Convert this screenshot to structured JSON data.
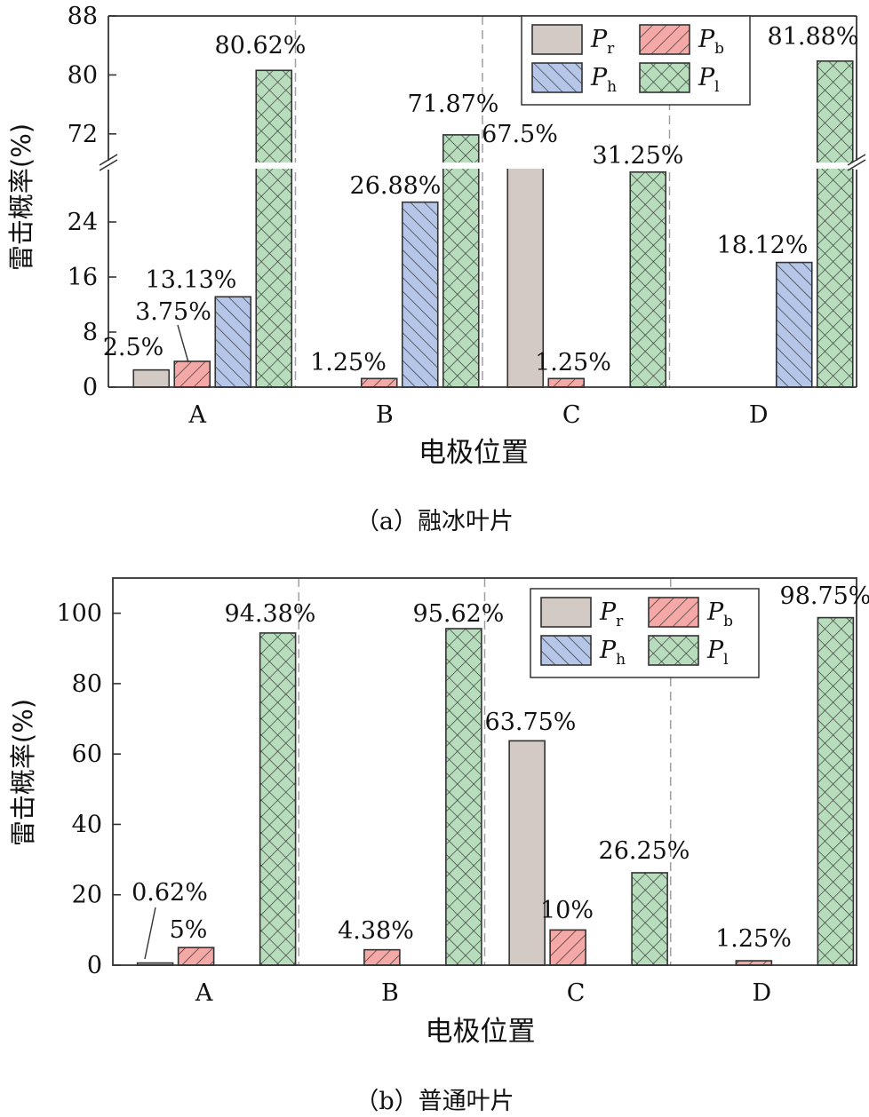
{
  "categories": [
    "A",
    "B",
    "C",
    "D"
  ],
  "colors": {
    "Pr": "#d3c9c5",
    "Pb": "#f4a9a6",
    "Ph": "#b5c6e8",
    "Pl": "#b7ddbd",
    "axis": "#333333",
    "divider": "#a0a0a0"
  },
  "chart_data": [
    {
      "type": "bar",
      "title": "融冰叶片",
      "caption": "（a）融冰叶片",
      "xlabel": "电极位置",
      "ylabel": "雷击概率(%)",
      "categories": [
        "A",
        "B",
        "C",
        "D"
      ],
      "axis_break": {
        "lower": [
          0,
          32
        ],
        "upper": [
          68,
          88
        ]
      },
      "yticks": [
        0,
        8,
        16,
        24,
        72,
        80,
        88
      ],
      "series": [
        {
          "key": "Pr",
          "legend": "P",
          "sub": "r",
          "values": [
            2.5,
            0,
            67.5,
            0
          ],
          "labels": [
            "2.5%",
            "",
            "67.5%",
            ""
          ]
        },
        {
          "key": "Pb",
          "legend": "P",
          "sub": "b",
          "values": [
            3.75,
            1.25,
            1.25,
            0
          ],
          "labels": [
            "3.75%",
            "1.25%",
            "1.25%",
            ""
          ]
        },
        {
          "key": "Ph",
          "legend": "P",
          "sub": "h",
          "values": [
            13.13,
            26.88,
            0,
            18.12
          ],
          "labels": [
            "13.13%",
            "26.88%",
            "",
            "18.12%"
          ]
        },
        {
          "key": "Pl",
          "legend": "P",
          "sub": "l",
          "values": [
            80.62,
            71.87,
            31.25,
            81.88
          ],
          "labels": [
            "80.62%",
            "71.87%",
            "31.25%",
            "81.88%"
          ]
        }
      ],
      "legend_position": "top-right"
    },
    {
      "type": "bar",
      "title": "普通叶片",
      "caption": "（b）普通叶片",
      "xlabel": "电极位置",
      "ylabel": "雷击概率(%)",
      "categories": [
        "A",
        "B",
        "C",
        "D"
      ],
      "ylim": [
        0,
        110
      ],
      "yticks": [
        0,
        20,
        40,
        60,
        80,
        100
      ],
      "series": [
        {
          "key": "Pr",
          "legend": "P",
          "sub": "r",
          "values": [
            0.62,
            0,
            63.75,
            0
          ],
          "labels": [
            "0.62%",
            "",
            "63.75%",
            ""
          ]
        },
        {
          "key": "Pb",
          "legend": "P",
          "sub": "b",
          "values": [
            5,
            4.38,
            10,
            1.25
          ],
          "labels": [
            "5%",
            "4.38%",
            "10%",
            "1.25%"
          ]
        },
        {
          "key": "Ph",
          "legend": "P",
          "sub": "h",
          "values": [
            0,
            0,
            0,
            0
          ],
          "labels": [
            "",
            "",
            "",
            ""
          ]
        },
        {
          "key": "Pl",
          "legend": "P",
          "sub": "l",
          "values": [
            94.38,
            95.62,
            26.25,
            98.75
          ],
          "labels": [
            "94.38%",
            "95.62%",
            "26.25%",
            "98.75%"
          ]
        }
      ],
      "legend_position": "top-right"
    }
  ]
}
